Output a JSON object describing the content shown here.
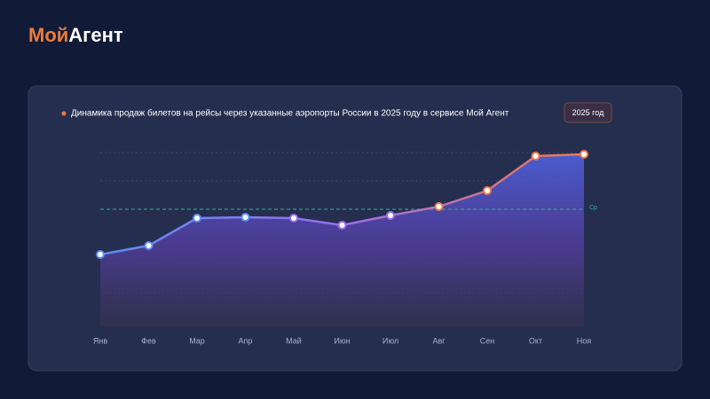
{
  "header": {
    "logo_part1": "Мой",
    "logo_part2": "Агент"
  },
  "chart_data": {
    "type": "line",
    "title": "Динамика продаж билетов на рейсы через указанные аэропорты России в 2025 году в сервисе Мой Агент",
    "period_button": "2025 год",
    "categories": [
      "Янв",
      "Фев",
      "Мар",
      "Апр",
      "Май",
      "Июн",
      "Июл",
      "Авг",
      "Сен",
      "Окт",
      "Ноя"
    ],
    "values": [
      81,
      91,
      122,
      123,
      122,
      114,
      125,
      135,
      153,
      192,
      194
    ],
    "point_colors": [
      "#5b8ff0",
      "#5b8ff0",
      "#5b8ff0",
      "#5b8ff0",
      "#9a6ef0",
      "#9a6ef0",
      "#9a6ef0",
      "#f07a4a",
      "#f07a4a",
      "#f07a4a",
      "#f07a4a"
    ],
    "average": 132,
    "average_label": "Ср",
    "average_color": "#2bb59a",
    "ylim": [
      0,
      200
    ]
  }
}
